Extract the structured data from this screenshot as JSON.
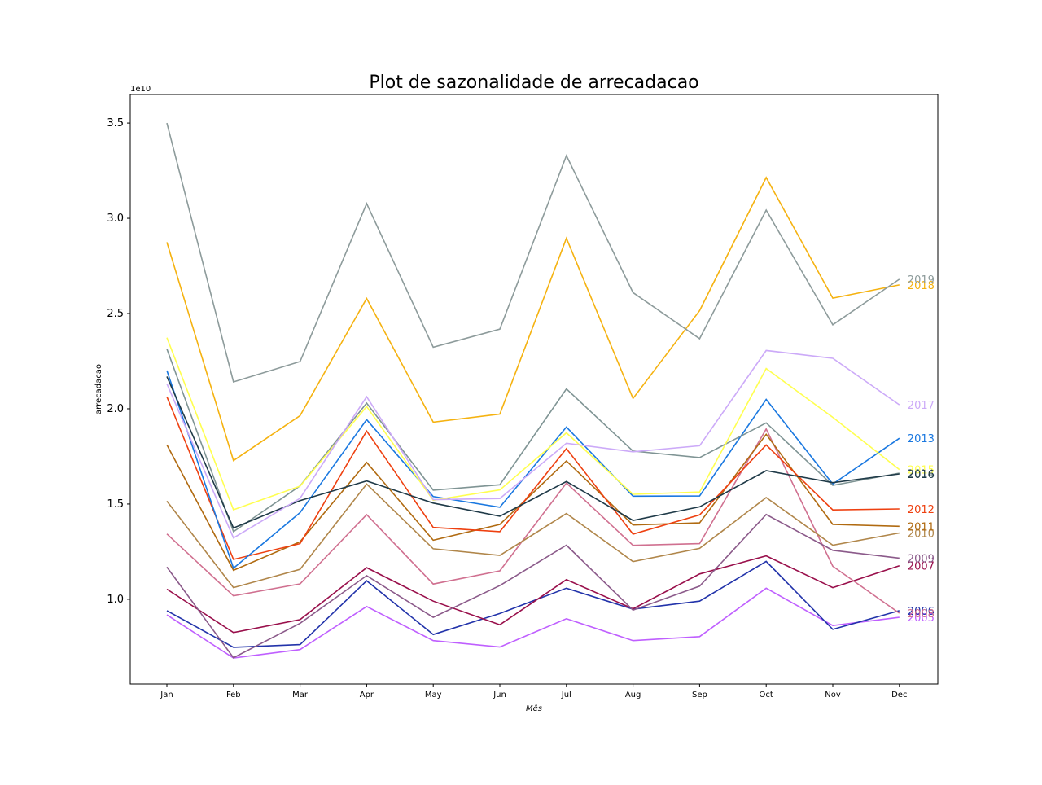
{
  "chart_data": {
    "type": "line",
    "title": "Plot de sazonalidade de arrecadacao",
    "xlabel": "Mês",
    "ylabel": "arrecadacao",
    "y_offset_label": "1e10",
    "y_scale": 10000000000.0,
    "categories": [
      "Jan",
      "Feb",
      "Mar",
      "Apr",
      "May",
      "Jun",
      "Jul",
      "Aug",
      "Sep",
      "Oct",
      "Nov",
      "Dec"
    ],
    "yticks": [
      1.0,
      1.5,
      2.0,
      2.5,
      3.0,
      3.5
    ],
    "ytick_labels": [
      "1.0",
      "1.5",
      "2.0",
      "2.5",
      "3.0",
      "3.5"
    ],
    "ylim": [
      0.555,
      3.65
    ],
    "grid": false,
    "legend": "labels at line ends",
    "series": [
      {
        "name": "2005",
        "color": "#bf5fff",
        "values": [
          0.918,
          0.692,
          0.736,
          0.962,
          0.783,
          0.749,
          0.898,
          0.783,
          0.804,
          1.058,
          0.862,
          0.905
        ]
      },
      {
        "name": "2006",
        "color": "#2233aa",
        "values": [
          0.94,
          0.748,
          0.762,
          1.097,
          0.815,
          0.925,
          1.058,
          0.948,
          0.99,
          1.199,
          0.842,
          0.94
        ]
      },
      {
        "name": "2007",
        "color": "#990f4b",
        "values": [
          1.053,
          0.825,
          0.893,
          1.166,
          0.99,
          0.866,
          1.103,
          0.95,
          1.133,
          1.228,
          1.061,
          1.176
        ]
      },
      {
        "name": "2008",
        "color": "#d07090",
        "values": [
          1.343,
          1.018,
          1.081,
          1.444,
          1.08,
          1.149,
          1.61,
          1.283,
          1.292,
          1.894,
          1.173,
          0.927
        ]
      },
      {
        "name": "2009",
        "color": "#8b5a8a",
        "values": [
          1.169,
          0.693,
          0.874,
          1.124,
          0.905,
          1.072,
          1.284,
          0.943,
          1.069,
          1.445,
          1.257,
          1.216
        ]
      },
      {
        "name": "2010",
        "color": "#b0864a",
        "values": [
          1.515,
          1.061,
          1.157,
          1.605,
          1.265,
          1.23,
          1.45,
          1.198,
          1.267,
          1.534,
          1.284,
          1.348
        ]
      },
      {
        "name": "2011",
        "color": "#b06a10",
        "values": [
          1.811,
          1.152,
          1.302,
          1.718,
          1.31,
          1.393,
          1.726,
          1.39,
          1.401,
          1.866,
          1.393,
          1.383
        ]
      },
      {
        "name": "2012",
        "color": "#ee4010",
        "values": [
          2.063,
          1.209,
          1.292,
          1.883,
          1.377,
          1.355,
          1.791,
          1.342,
          1.443,
          1.81,
          1.469,
          1.474
        ]
      },
      {
        "name": "2013",
        "color": "#1a78e0",
        "values": [
          2.201,
          1.163,
          1.455,
          1.943,
          1.539,
          1.483,
          1.904,
          1.541,
          1.542,
          2.049,
          1.605,
          1.845
        ]
      },
      {
        "name": "2014",
        "color": "#7f9494",
        "values": [
          2.314,
          1.355,
          1.595,
          2.03,
          1.573,
          1.601,
          2.104,
          1.778,
          1.744,
          1.926,
          1.598,
          1.662
        ]
      },
      {
        "name": "2015",
        "color": "#ffff50",
        "values": [
          2.373,
          1.47,
          1.594,
          2.012,
          1.52,
          1.574,
          1.874,
          1.551,
          1.563,
          2.211,
          1.955,
          1.681
        ]
      },
      {
        "name": "2016",
        "color": "#1f3a48",
        "values": [
          2.169,
          1.374,
          1.518,
          1.621,
          1.505,
          1.436,
          1.618,
          1.414,
          1.485,
          1.675,
          1.612,
          1.658
        ]
      },
      {
        "name": "2017",
        "color": "#ccaaf8",
        "values": [
          2.131,
          1.322,
          1.53,
          2.063,
          1.523,
          1.529,
          1.819,
          1.774,
          1.806,
          2.306,
          2.265,
          2.021
        ]
      },
      {
        "name": "2018",
        "color": "#f5b210",
        "values": [
          2.874,
          1.728,
          1.964,
          2.579,
          1.93,
          1.972,
          2.895,
          2.054,
          2.515,
          3.214,
          2.581,
          2.65
        ]
      },
      {
        "name": "2019",
        "color": "#8d9b9b",
        "values": [
          3.5,
          2.141,
          2.248,
          3.077,
          2.323,
          2.418,
          3.329,
          2.61,
          2.368,
          3.043,
          2.441,
          2.68
        ]
      }
    ]
  }
}
